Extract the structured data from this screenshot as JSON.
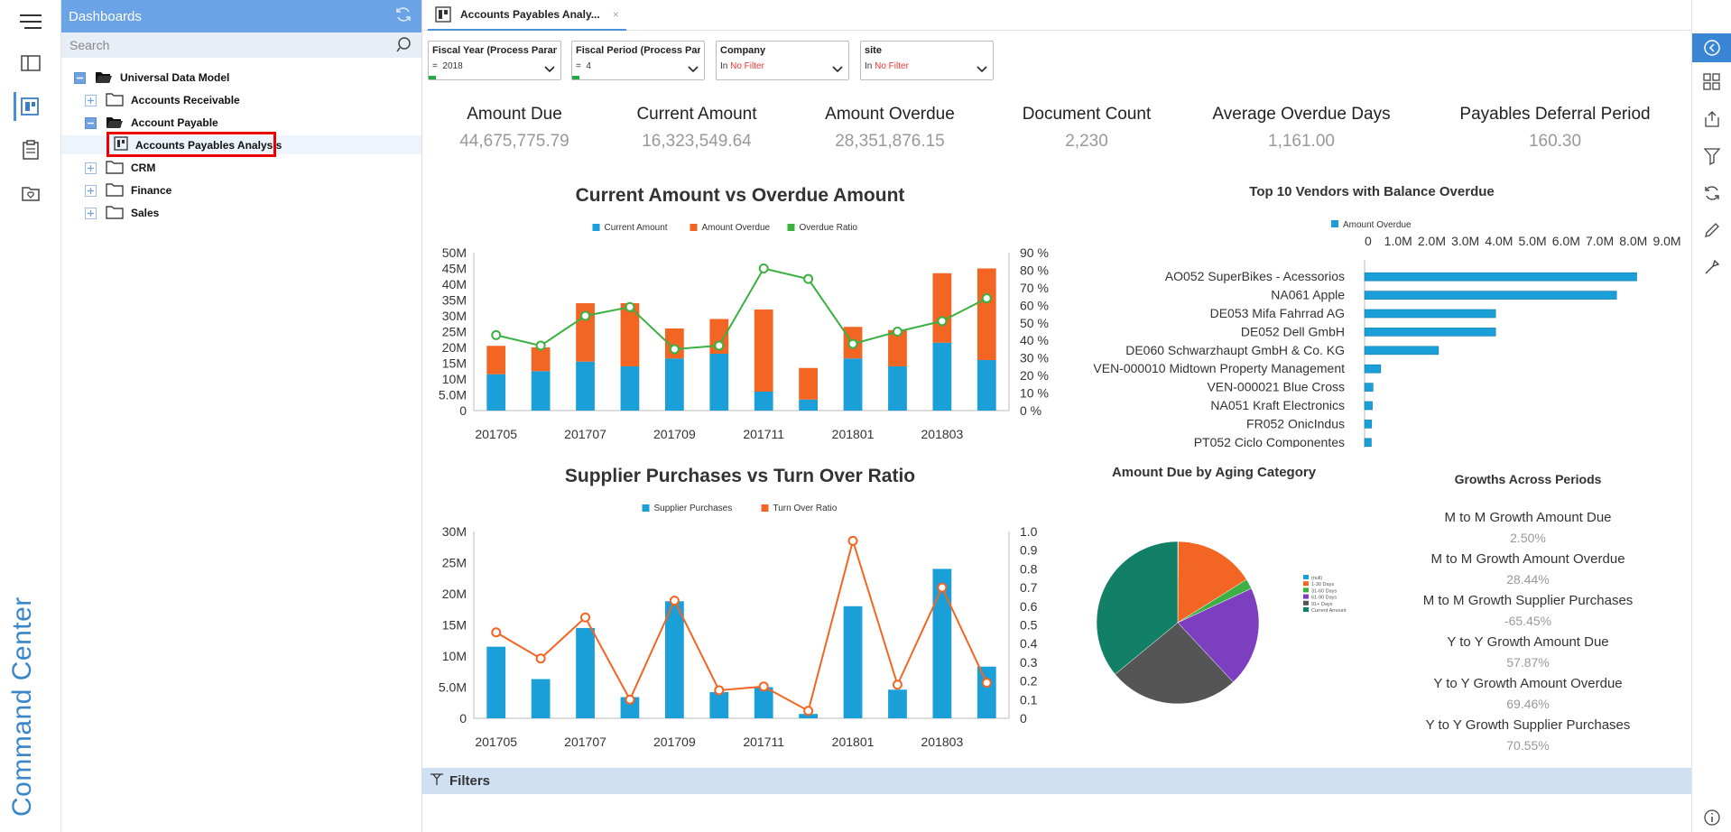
{
  "rail": {
    "brand_text": "Command Center"
  },
  "panel": {
    "title": "Dashboards",
    "search_placeholder": "Search",
    "tree": {
      "root": "Universal Data Model",
      "ar": "Accounts Receivable",
      "ap": "Account Payable",
      "apa": "Accounts Payables Analysis",
      "crm": "CRM",
      "finance": "Finance",
      "sales": "Sales"
    }
  },
  "tab": {
    "label": "Accounts Payables Analy...",
    "close": "×"
  },
  "filters": [
    {
      "title": "Fiscal Year (Process Param...",
      "op": "=",
      "value": "2018"
    },
    {
      "title": "Fiscal Period (Process Par...",
      "op": "=",
      "value": "4"
    },
    {
      "title": "Company",
      "op": "In",
      "value": "No Filter"
    },
    {
      "title": "site",
      "op": "In",
      "value": "No Filter"
    }
  ],
  "kpis": [
    {
      "label": "Amount Due",
      "value": "44,675,775.79"
    },
    {
      "label": "Current Amount",
      "value": "16,323,549.64"
    },
    {
      "label": "Amount Overdue",
      "value": "28,351,876.15"
    },
    {
      "label": "Document Count",
      "value": "2,230"
    },
    {
      "label": "Average Overdue Days",
      "value": "1,161.00"
    },
    {
      "label": "Payables Deferral Period",
      "value": "160.30"
    }
  ],
  "chart_data": [
    {
      "type": "bar",
      "title": "Current Amount vs Overdue Amount",
      "categories": [
        "201705",
        "201706",
        "201707",
        "201708",
        "201709",
        "201710",
        "201711",
        "201712",
        "201801",
        "201802",
        "201803",
        "201804"
      ],
      "x_tick_labels": [
        "201705",
        "201707",
        "201709",
        "201711",
        "201801",
        "201803"
      ],
      "y_tick_labels": [
        "0",
        "5.0M",
        "10M",
        "15M",
        "20M",
        "25M",
        "30M",
        "35M",
        "40M",
        "45M",
        "50M"
      ],
      "y2_tick_labels": [
        "0 %",
        "10 %",
        "20 %",
        "30 %",
        "40 %",
        "50 %",
        "60 %",
        "70 %",
        "80 %",
        "90 %"
      ],
      "ylim": [
        0,
        50000000
      ],
      "y2lim": [
        0,
        90
      ],
      "stacked": true,
      "legend": [
        "Current Amount",
        "Amount Overdue",
        "Overdue Ratio"
      ],
      "series": [
        {
          "name": "Current Amount",
          "color": "#1a9fd9",
          "values": [
            11500000,
            12500000,
            15500000,
            14000000,
            16500000,
            18000000,
            6000000,
            3500000,
            16500000,
            14000000,
            21500000,
            16000000
          ]
        },
        {
          "name": "Amount Overdue",
          "color": "#f26522",
          "values": [
            9000000,
            7500000,
            18500000,
            20000000,
            9500000,
            11000000,
            26000000,
            10000000,
            10000000,
            11500000,
            22000000,
            29000000
          ]
        },
        {
          "name": "Overdue Ratio",
          "color": "#3cb043",
          "axis": "right",
          "values": [
            43,
            37,
            54,
            59,
            35,
            37,
            81,
            75,
            38,
            45,
            51,
            64
          ]
        }
      ]
    },
    {
      "type": "bar",
      "title": "Supplier Purchases vs Turn Over Ratio",
      "categories": [
        "201705",
        "201706",
        "201707",
        "201708",
        "201709",
        "201710",
        "201711",
        "201712",
        "201801",
        "201802",
        "201803",
        "201804"
      ],
      "x_tick_labels": [
        "201705",
        "201707",
        "201709",
        "201711",
        "201801",
        "201803"
      ],
      "y_tick_labels": [
        "0",
        "5.0M",
        "10M",
        "15M",
        "20M",
        "25M",
        "30M"
      ],
      "y2_tick_labels": [
        "0",
        "0.1",
        "0.2",
        "0.3",
        "0.4",
        "0.5",
        "0.6",
        "0.7",
        "0.8",
        "0.9",
        "1.0"
      ],
      "ylim": [
        0,
        30000000
      ],
      "y2lim": [
        0,
        1.0
      ],
      "legend": [
        "Supplier Purchases",
        "Turn Over Ratio"
      ],
      "series": [
        {
          "name": "Supplier Purchases",
          "color": "#1a9fd9",
          "values": [
            11500000,
            6300000,
            14500000,
            3400000,
            18800000,
            4200000,
            5000000,
            700000,
            18000000,
            4600000,
            24000000,
            8300000
          ]
        },
        {
          "name": "Turn Over Ratio",
          "color": "#f26522",
          "axis": "right",
          "values": [
            0.46,
            0.32,
            0.54,
            0.1,
            0.63,
            0.15,
            0.17,
            0.04,
            0.95,
            0.18,
            0.7,
            0.19
          ]
        }
      ]
    },
    {
      "type": "bar",
      "orientation": "horizontal",
      "title": "Top 10 Vendors with Balance Overdue",
      "legend": [
        "Amount Overdue"
      ],
      "x_tick_labels": [
        "0",
        "1.0M",
        "2.0M",
        "3.0M",
        "4.0M",
        "5.0M",
        "6.0M",
        "7.0M",
        "8.0M",
        "9.0M"
      ],
      "xlim": [
        0,
        9000000
      ],
      "categories": [
        "AO052 SuperBikes - Acessorios",
        "NA061 Apple",
        "DE053 Mifa Fahrrad AG",
        "DE052 Dell GmbH",
        "DE060 Schwarzhaupt GmbH & Co. KG",
        "VEN-000010 Midtown Property Management",
        "VEN-000021 Blue Cross",
        "NA051 Kraft Electronics",
        "FR052 OnicIndus",
        "PT052 Ciclo Componentes"
      ],
      "series": [
        {
          "name": "Amount Overdue",
          "color": "#1a9fd9",
          "values": [
            8100000,
            7500000,
            3900000,
            3900000,
            2200000,
            480000,
            250000,
            230000,
            210000,
            200000
          ]
        }
      ]
    },
    {
      "type": "pie",
      "title": "Amount Due by Aging Category",
      "legend": [
        "(null)",
        "1-30 Days",
        "31-60 Days",
        "61-90 Days",
        "91+ Days",
        "Current Amount"
      ],
      "slices": [
        {
          "label": "(null)",
          "value": 0.1,
          "color": "#1a9fd9"
        },
        {
          "label": "1-30 Days",
          "value": 16,
          "color": "#f26522"
        },
        {
          "label": "31-60 Days",
          "value": 2,
          "color": "#3cb043"
        },
        {
          "label": "61-90 Days",
          "value": 20,
          "color": "#7b3fbf"
        },
        {
          "label": "91+ Days",
          "value": 26,
          "color": "#555555"
        },
        {
          "label": "Current Amount",
          "value": 36,
          "color": "#128066"
        }
      ]
    }
  ],
  "growths": {
    "title": "Growths Across Periods",
    "items": [
      {
        "label": "M to M Growth Amount Due",
        "value": "2.50%"
      },
      {
        "label": "M to M Growth Amount Overdue",
        "value": "28.44%"
      },
      {
        "label": "M to M Growth Supplier Purchases",
        "value": "-65.45%"
      },
      {
        "label": "Y to Y Growth Amount Due",
        "value": "57.87%"
      },
      {
        "label": "Y to Y Growth Amount Overdue",
        "value": "69.46%"
      },
      {
        "label": "Y to Y Growth Supplier Purchases",
        "value": "70.55%"
      }
    ]
  },
  "filters_bar": {
    "label": "Filters"
  },
  "colors": {
    "accent": "#4a90d9",
    "panel_header": "#6aa4e6",
    "highlight": "#ee0000"
  }
}
